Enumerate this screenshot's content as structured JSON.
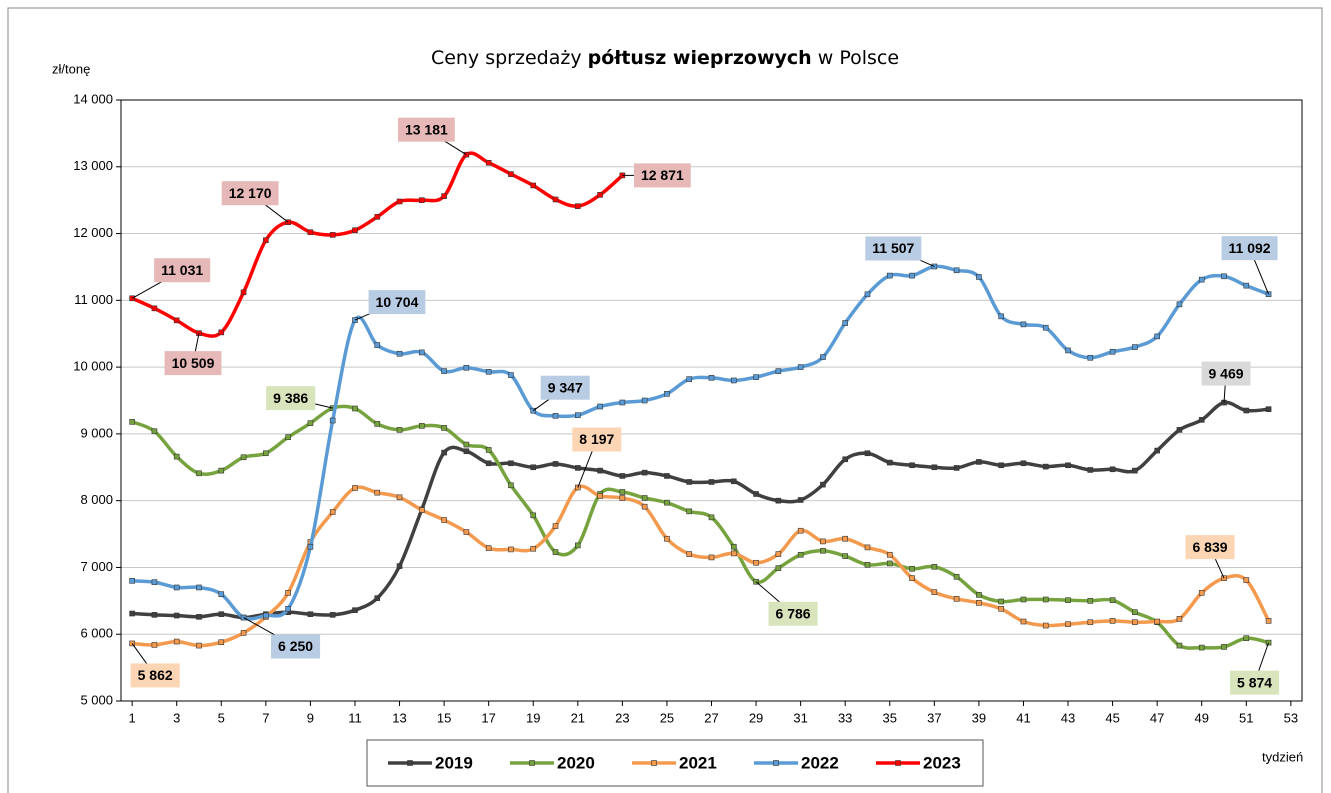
{
  "chart_data": {
    "type": "line",
    "title": [
      "Ceny sprzedaży",
      "półtusz wieprzowych",
      "w Polsce"
    ],
    "y_label": "zł/tonę",
    "x_label": "tydzień",
    "x": [
      1,
      2,
      3,
      4,
      5,
      6,
      7,
      8,
      9,
      10,
      11,
      12,
      13,
      14,
      15,
      16,
      17,
      18,
      19,
      20,
      21,
      22,
      23,
      24,
      25,
      26,
      27,
      28,
      29,
      30,
      31,
      32,
      33,
      34,
      35,
      36,
      37,
      38,
      39,
      40,
      41,
      42,
      43,
      44,
      45,
      46,
      47,
      48,
      49,
      50,
      51,
      52
    ],
    "xlim": [
      0.5,
      53.5
    ],
    "xticks": [
      1,
      3,
      5,
      7,
      9,
      11,
      13,
      15,
      17,
      19,
      21,
      23,
      25,
      27,
      29,
      31,
      33,
      35,
      37,
      39,
      41,
      43,
      45,
      47,
      49,
      51,
      53
    ],
    "ylim": [
      5000,
      14000
    ],
    "yticks": [
      {
        "value": 5000,
        "label": "5 000"
      },
      {
        "value": 6000,
        "label": "6 000"
      },
      {
        "value": 7000,
        "label": "7 000"
      },
      {
        "value": 8000,
        "label": "8 000"
      },
      {
        "value": 9000,
        "label": "9 000"
      },
      {
        "value": 10000,
        "label": "10 000"
      },
      {
        "value": 11000,
        "label": "11 000"
      },
      {
        "value": 12000,
        "label": "12 000"
      },
      {
        "value": 13000,
        "label": "13 000"
      },
      {
        "value": 14000,
        "label": "14 000"
      }
    ],
    "grid": true,
    "smooth": true,
    "series": [
      {
        "name": "2019",
        "color": "#404040",
        "label_color": "#d9d9d9",
        "values": [
          6310,
          6290,
          6280,
          6260,
          6300,
          6250,
          6300,
          6330,
          6300,
          6290,
          6360,
          6540,
          7020,
          7870,
          8720,
          8740,
          8560,
          8560,
          8500,
          8550,
          8490,
          8450,
          8370,
          8420,
          8370,
          8280,
          8280,
          8290,
          8100,
          8000,
          8010,
          8240,
          8620,
          8710,
          8570,
          8530,
          8500,
          8490,
          8580,
          8530,
          8560,
          8510,
          8530,
          8460,
          8470,
          8450,
          8750,
          9060,
          9210,
          9469,
          9350,
          9370
        ],
        "value_labels": [
          null,
          null,
          null,
          null,
          null,
          null,
          null,
          null,
          null,
          null,
          null,
          null,
          null,
          null,
          null,
          null,
          null,
          null,
          null,
          null,
          null,
          null,
          null,
          null,
          null,
          null,
          null,
          null,
          null,
          null,
          null,
          null,
          null,
          null,
          null,
          null,
          null,
          null,
          null,
          null,
          null,
          null,
          null,
          null,
          null,
          null,
          null,
          null,
          null,
          "9 469",
          null,
          null
        ]
      },
      {
        "name": "2020",
        "color": "#76a33e",
        "label_color": "#d8e4bc",
        "values": [
          9180,
          9040,
          8660,
          8410,
          8450,
          8650,
          8710,
          8950,
          9160,
          9386,
          9380,
          9150,
          9060,
          9120,
          9090,
          8840,
          8760,
          8230,
          7780,
          7230,
          7330,
          8100,
          8130,
          8040,
          7970,
          7840,
          7750,
          7310,
          6786,
          6990,
          7190,
          7250,
          7170,
          7040,
          7060,
          6980,
          7010,
          6860,
          6590,
          6490,
          6520,
          6520,
          6510,
          6500,
          6510,
          6330,
          6180,
          5830,
          5800,
          5810,
          5940,
          5874
        ],
        "value_labels": [
          null,
          null,
          null,
          null,
          null,
          null,
          null,
          null,
          null,
          "9 386",
          null,
          null,
          null,
          null,
          null,
          null,
          null,
          null,
          null,
          null,
          null,
          null,
          null,
          null,
          null,
          null,
          null,
          null,
          "6 786",
          null,
          null,
          null,
          null,
          null,
          null,
          null,
          null,
          null,
          null,
          null,
          null,
          null,
          null,
          null,
          null,
          null,
          null,
          null,
          null,
          null,
          null,
          "5 874"
        ]
      },
      {
        "name": "2021",
        "color": "#f39a4f",
        "label_color": "#fcd5b4",
        "values": [
          5862,
          5840,
          5890,
          5830,
          5880,
          6020,
          6260,
          6620,
          7380,
          7830,
          8190,
          8120,
          8050,
          7860,
          7710,
          7530,
          7290,
          7270,
          7280,
          7620,
          8197,
          8070,
          8040,
          7910,
          7430,
          7200,
          7150,
          7210,
          7070,
          7200,
          7550,
          7390,
          7430,
          7300,
          7190,
          6840,
          6630,
          6530,
          6470,
          6380,
          6190,
          6130,
          6150,
          6180,
          6200,
          6180,
          6190,
          6230,
          6620,
          6839,
          6810,
          6200
        ],
        "value_labels": [
          "5 862",
          null,
          null,
          null,
          null,
          null,
          null,
          null,
          null,
          null,
          null,
          null,
          null,
          null,
          null,
          null,
          null,
          null,
          null,
          null,
          "8 197",
          null,
          null,
          null,
          null,
          null,
          null,
          null,
          null,
          null,
          null,
          null,
          null,
          null,
          null,
          null,
          null,
          null,
          null,
          null,
          null,
          null,
          null,
          null,
          null,
          null,
          null,
          null,
          null,
          "6 839",
          null,
          null
        ]
      },
      {
        "name": "2022",
        "color": "#5b9bd5",
        "label_color": "#b8cce4",
        "values": [
          6800,
          6780,
          6700,
          6700,
          6600,
          6250,
          6280,
          6380,
          7310,
          9200,
          10704,
          10330,
          10200,
          10220,
          9940,
          9990,
          9930,
          9880,
          9347,
          9270,
          9280,
          9410,
          9470,
          9500,
          9600,
          9820,
          9840,
          9800,
          9850,
          9940,
          10000,
          10150,
          10660,
          11090,
          11370,
          11370,
          11507,
          11450,
          11350,
          10760,
          10640,
          10590,
          10250,
          10140,
          10230,
          10300,
          10460,
          10940,
          11310,
          11360,
          11220,
          11092
        ],
        "value_labels": [
          null,
          null,
          null,
          null,
          null,
          "6 250",
          null,
          null,
          null,
          null,
          "10 704",
          null,
          null,
          null,
          null,
          null,
          null,
          null,
          "9 347",
          null,
          null,
          null,
          null,
          null,
          null,
          null,
          null,
          null,
          null,
          null,
          null,
          null,
          null,
          null,
          null,
          null,
          "11 507",
          null,
          null,
          null,
          null,
          null,
          null,
          null,
          null,
          null,
          null,
          null,
          null,
          null,
          null,
          "11 092"
        ]
      },
      {
        "name": "2023",
        "color": "#ff0000",
        "label_color": "#e6b8b7",
        "values": [
          11031,
          10880,
          10700,
          10509,
          10520,
          11120,
          11900,
          12170,
          12020,
          11980,
          12050,
          12250,
          12480,
          12500,
          12560,
          13181,
          13060,
          12890,
          12720,
          12510,
          12410,
          12580,
          12871,
          null,
          null,
          null,
          null,
          null,
          null,
          null,
          null,
          null,
          null,
          null,
          null,
          null,
          null,
          null,
          null,
          null,
          null,
          null,
          null,
          null,
          null,
          null,
          null,
          null,
          null,
          null,
          null,
          null
        ],
        "value_labels": [
          "11 031",
          null,
          null,
          "10 509",
          null,
          null,
          null,
          "12 170",
          null,
          null,
          null,
          null,
          null,
          null,
          null,
          "13 181",
          null,
          null,
          null,
          null,
          null,
          null,
          "12 871",
          null,
          null,
          null,
          null,
          null,
          null,
          null,
          null,
          null,
          null,
          null,
          null,
          null,
          null,
          null,
          null,
          null,
          null,
          null,
          null,
          null,
          null,
          null,
          null,
          null,
          null,
          null,
          null,
          null
        ]
      }
    ]
  }
}
